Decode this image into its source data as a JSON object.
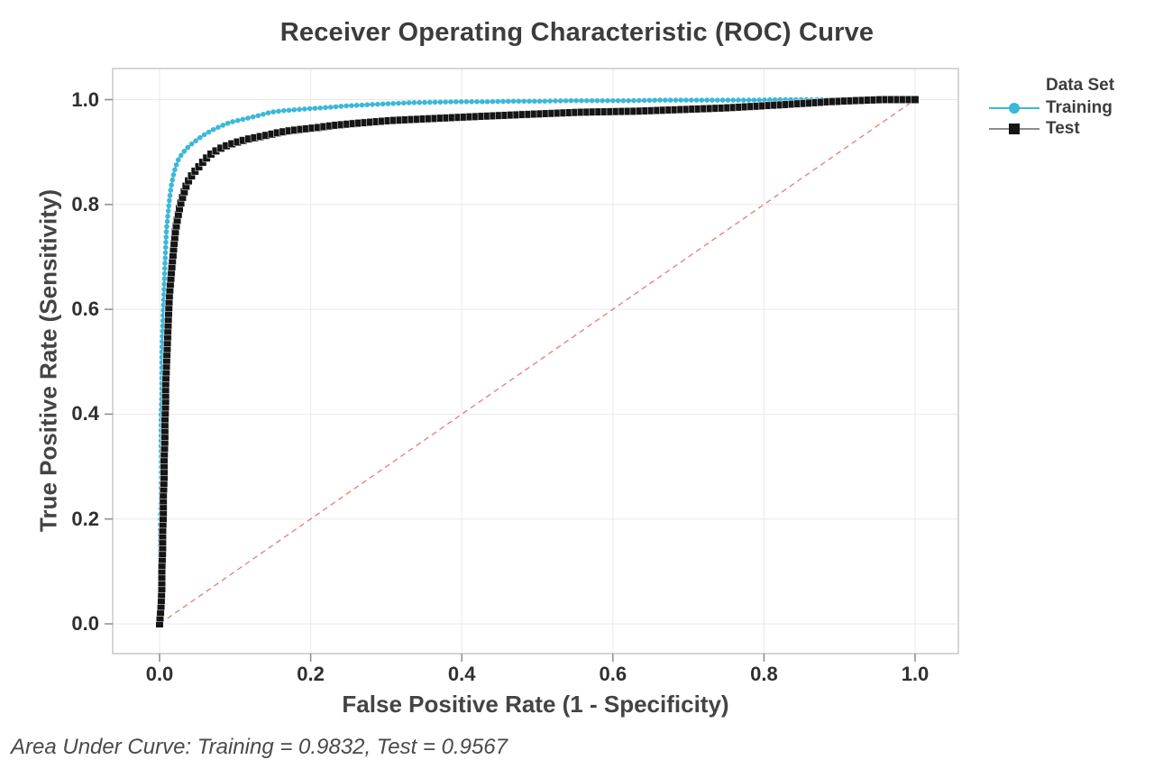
{
  "title": "Receiver Operating Characteristic (ROC) Curve",
  "footnote": "Area Under Curve: Training = 0.9832, Test = 0.9567",
  "legend": {
    "title": "Data Set",
    "entries": [
      {
        "label": "Training",
        "color": "#3bb8da",
        "marker": "circle"
      },
      {
        "label": "Test",
        "color": "#151515",
        "marker": "square"
      }
    ]
  },
  "colors": {
    "training": "#3bb8da",
    "test": "#151515",
    "diagonal": "#e3635d",
    "gridline": "#e9e9e9",
    "plot_border": "#c8c8c8",
    "tick_mark": "#8c8c8c"
  },
  "chart_data": {
    "type": "line",
    "title": "Receiver Operating Characteristic (ROC) Curve",
    "xlabel": "False Positive Rate (1 - Specificity)",
    "ylabel": "True Positive Rate (Sensitivity)",
    "xlim": [
      0,
      1
    ],
    "ylim": [
      0,
      1
    ],
    "x_ticks": [
      "0.0",
      "0.2",
      "0.4",
      "0.6",
      "0.8",
      "1.0"
    ],
    "y_ticks": [
      "0.0",
      "0.2",
      "0.4",
      "0.6",
      "0.8",
      "1.0"
    ],
    "tick_values": [
      0,
      0.2,
      0.4,
      0.6,
      0.8,
      1.0
    ],
    "grid": true,
    "legend_position": "right",
    "reference_line": {
      "from": [
        0,
        0
      ],
      "to": [
        1,
        1
      ],
      "style": "dashed",
      "color": "#e3635d"
    },
    "series": [
      {
        "name": "Training",
        "color": "#3bb8da",
        "marker": "circle",
        "auc": 0.9832,
        "points": [
          [
            0.0,
            0.0
          ],
          [
            0.001,
            0.04
          ],
          [
            0.001,
            0.08
          ],
          [
            0.001,
            0.12
          ],
          [
            0.001,
            0.16
          ],
          [
            0.001,
            0.2
          ],
          [
            0.002,
            0.24
          ],
          [
            0.002,
            0.28
          ],
          [
            0.002,
            0.32
          ],
          [
            0.002,
            0.36
          ],
          [
            0.002,
            0.4
          ],
          [
            0.003,
            0.44
          ],
          [
            0.003,
            0.48
          ],
          [
            0.003,
            0.52
          ],
          [
            0.004,
            0.56
          ],
          [
            0.005,
            0.6
          ],
          [
            0.006,
            0.64
          ],
          [
            0.007,
            0.68
          ],
          [
            0.008,
            0.715
          ],
          [
            0.009,
            0.75
          ],
          [
            0.011,
            0.78
          ],
          [
            0.013,
            0.808
          ],
          [
            0.015,
            0.832
          ],
          [
            0.018,
            0.854
          ],
          [
            0.021,
            0.871
          ],
          [
            0.025,
            0.886
          ],
          [
            0.03,
            0.897
          ],
          [
            0.036,
            0.907
          ],
          [
            0.043,
            0.916
          ],
          [
            0.051,
            0.925
          ],
          [
            0.06,
            0.934
          ],
          [
            0.07,
            0.942
          ],
          [
            0.082,
            0.95
          ],
          [
            0.094,
            0.957
          ],
          [
            0.106,
            0.961
          ],
          [
            0.118,
            0.965
          ],
          [
            0.132,
            0.97
          ],
          [
            0.147,
            0.976
          ],
          [
            0.164,
            0.979
          ],
          [
            0.182,
            0.981
          ],
          [
            0.201,
            0.983
          ],
          [
            0.222,
            0.985
          ],
          [
            0.246,
            0.988
          ],
          [
            0.272,
            0.99
          ],
          [
            0.3,
            0.992
          ],
          [
            0.33,
            0.994
          ],
          [
            0.362,
            0.995
          ],
          [
            0.396,
            0.996
          ],
          [
            0.432,
            0.996
          ],
          [
            0.468,
            0.997
          ],
          [
            0.505,
            0.997
          ],
          [
            0.543,
            0.998
          ],
          [
            0.581,
            0.998
          ],
          [
            0.62,
            0.998
          ],
          [
            0.66,
            0.999
          ],
          [
            0.7,
            0.999
          ],
          [
            0.741,
            0.999
          ],
          [
            0.782,
            0.999
          ],
          [
            0.824,
            1.0
          ],
          [
            0.866,
            1.0
          ],
          [
            0.91,
            1.0
          ],
          [
            0.955,
            1.0
          ],
          [
            1.0,
            1.0
          ]
        ]
      },
      {
        "name": "Test",
        "color": "#151515",
        "marker": "square",
        "auc": 0.9567,
        "points": [
          [
            0.0,
            0.0
          ],
          [
            0.002,
            0.035
          ],
          [
            0.003,
            0.07
          ],
          [
            0.003,
            0.105
          ],
          [
            0.004,
            0.14
          ],
          [
            0.004,
            0.175
          ],
          [
            0.005,
            0.21
          ],
          [
            0.005,
            0.245
          ],
          [
            0.006,
            0.28
          ],
          [
            0.006,
            0.315
          ],
          [
            0.007,
            0.35
          ],
          [
            0.007,
            0.385
          ],
          [
            0.008,
            0.42
          ],
          [
            0.008,
            0.455
          ],
          [
            0.009,
            0.49
          ],
          [
            0.01,
            0.525
          ],
          [
            0.011,
            0.56
          ],
          [
            0.012,
            0.595
          ],
          [
            0.013,
            0.628
          ],
          [
            0.015,
            0.66
          ],
          [
            0.017,
            0.692
          ],
          [
            0.019,
            0.722
          ],
          [
            0.021,
            0.75
          ],
          [
            0.024,
            0.775
          ],
          [
            0.027,
            0.797
          ],
          [
            0.031,
            0.817
          ],
          [
            0.035,
            0.835
          ],
          [
            0.04,
            0.85
          ],
          [
            0.046,
            0.862
          ],
          [
            0.052,
            0.872
          ],
          [
            0.058,
            0.882
          ],
          [
            0.065,
            0.893
          ],
          [
            0.073,
            0.901
          ],
          [
            0.082,
            0.908
          ],
          [
            0.092,
            0.914
          ],
          [
            0.103,
            0.919
          ],
          [
            0.115,
            0.924
          ],
          [
            0.128,
            0.928
          ],
          [
            0.142,
            0.932
          ],
          [
            0.157,
            0.937
          ],
          [
            0.174,
            0.941
          ],
          [
            0.192,
            0.944
          ],
          [
            0.211,
            0.947
          ],
          [
            0.232,
            0.951
          ],
          [
            0.255,
            0.954
          ],
          [
            0.28,
            0.957
          ],
          [
            0.306,
            0.96
          ],
          [
            0.334,
            0.962
          ],
          [
            0.364,
            0.964
          ],
          [
            0.394,
            0.966
          ],
          [
            0.425,
            0.968
          ],
          [
            0.457,
            0.97
          ],
          [
            0.49,
            0.972
          ],
          [
            0.524,
            0.974
          ],
          [
            0.559,
            0.976
          ],
          [
            0.596,
            0.977
          ],
          [
            0.634,
            0.978
          ],
          [
            0.672,
            0.98
          ],
          [
            0.71,
            0.982
          ],
          [
            0.748,
            0.984
          ],
          [
            0.786,
            0.987
          ],
          [
            0.822,
            0.99
          ],
          [
            0.856,
            0.993
          ],
          [
            0.888,
            0.996
          ],
          [
            0.92,
            0.998
          ],
          [
            0.958,
            1.0
          ],
          [
            1.0,
            1.0
          ]
        ]
      }
    ]
  }
}
